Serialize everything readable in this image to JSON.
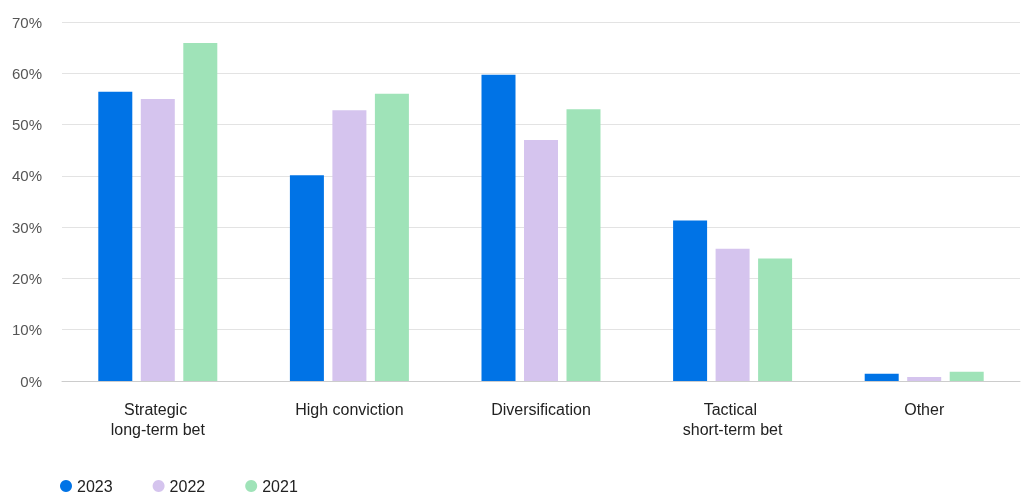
{
  "chart_data": {
    "type": "bar",
    "categories": [
      "Strategic long-term bet",
      "High conviction",
      "Diversification",
      "Tactical short-term bet",
      "Other"
    ],
    "series": [
      {
        "name": "2023",
        "color": "#0073e6",
        "values": [
          56.4,
          40.1,
          59.7,
          31.3,
          1.4
        ]
      },
      {
        "name": "2022",
        "color": "#d5c4ee",
        "values": [
          55.0,
          52.8,
          47.0,
          25.8,
          0.8
        ]
      },
      {
        "name": "2021",
        "color": "#9fe3b8",
        "values": [
          65.9,
          56.0,
          53.0,
          23.9,
          1.8
        ]
      }
    ],
    "ylim": [
      0,
      70
    ],
    "yticks": [
      {
        "value": 0,
        "label": "0%"
      },
      {
        "value": 10,
        "label": "10%"
      },
      {
        "value": 20,
        "label": "20%"
      },
      {
        "value": 30,
        "label": "30%"
      },
      {
        "value": 40,
        "label": "40%"
      },
      {
        "value": 50,
        "label": "50%"
      },
      {
        "value": 60,
        "label": "60%"
      },
      {
        "value": 70,
        "label": "70%"
      }
    ],
    "grid": "y",
    "legend": "bottom left"
  }
}
